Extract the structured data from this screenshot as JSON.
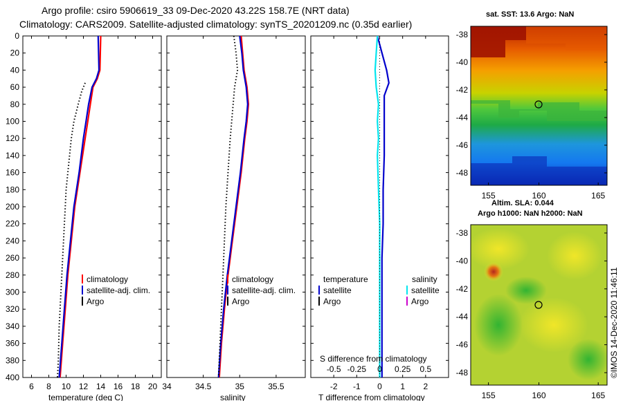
{
  "header": {
    "line1": "Argo profile: csiro 5906619_33 09-Dec-2020 43.22S 158.7E (NRT data)",
    "line2": "Climatology: CARS2009. Satellite-adjusted climatology: synTS_20201209.nc (0.35d earlier)"
  },
  "colors": {
    "climatology": "#ff0000",
    "satellite": "#0000cc",
    "argo": "#000000",
    "sat_salinity": "#00e5ee",
    "argo_salinity": "#cc00cc"
  },
  "chart_data": [
    {
      "type": "line",
      "id": "temperature",
      "xlabel": "temperature (deg C)",
      "ylabel": "",
      "xlim": [
        5,
        21
      ],
      "ylim": [
        400,
        0
      ],
      "xticks": [
        6,
        8,
        10,
        12,
        14,
        16,
        18,
        20
      ],
      "yticks": [
        0,
        20,
        40,
        60,
        80,
        100,
        120,
        140,
        160,
        180,
        200,
        220,
        240,
        260,
        280,
        300,
        320,
        340,
        360,
        380,
        400
      ],
      "legend": [
        "climatology",
        "satellite-adj. clim.",
        "Argo"
      ],
      "series": [
        {
          "name": "climatology",
          "color": "#ff0000",
          "depth": [
            0,
            20,
            40,
            50,
            60,
            80,
            100,
            120,
            160,
            200,
            240,
            280,
            320,
            360,
            400
          ],
          "values": [
            14.0,
            13.95,
            13.9,
            13.6,
            13.1,
            12.8,
            12.5,
            12.2,
            11.6,
            11.0,
            10.6,
            10.2,
            9.9,
            9.6,
            9.3
          ]
        },
        {
          "name": "satellite-adj. clim.",
          "color": "#0000cc",
          "depth": [
            0,
            20,
            40,
            50,
            60,
            80,
            100,
            120,
            160,
            200,
            240,
            280,
            320,
            360,
            400
          ],
          "values": [
            13.7,
            13.75,
            13.8,
            13.5,
            13.0,
            12.6,
            12.3,
            12.0,
            11.5,
            10.9,
            10.5,
            10.1,
            9.8,
            9.5,
            9.2
          ]
        },
        {
          "name": "Argo",
          "color": "#000000",
          "depth": [
            55,
            65,
            80,
            100,
            120,
            140,
            160,
            180,
            200,
            220,
            240,
            260,
            280,
            300,
            320,
            340,
            360,
            380,
            400
          ],
          "values": [
            12.2,
            11.8,
            11.4,
            10.9,
            10.6,
            10.4,
            10.2,
            10.0,
            9.9,
            9.8,
            9.7,
            9.6,
            9.5,
            9.4,
            9.3,
            9.2,
            9.15,
            9.1,
            9.0
          ]
        }
      ]
    },
    {
      "type": "line",
      "id": "salinity",
      "xlabel": "salinity",
      "ylabel": "",
      "xlim": [
        34,
        35.9
      ],
      "ylim": [
        400,
        0
      ],
      "xticks": [
        34,
        34.5,
        35,
        35.5
      ],
      "legend": [
        "climatology",
        "satellite-adj. clim.",
        "Argo"
      ],
      "series": [
        {
          "name": "climatology",
          "color": "#ff0000",
          "depth": [
            0,
            20,
            40,
            60,
            80,
            100,
            120,
            160,
            200,
            240,
            280,
            320,
            360,
            400
          ],
          "values": [
            35.02,
            35.04,
            35.06,
            35.1,
            35.12,
            35.1,
            35.07,
            35.02,
            34.96,
            34.9,
            34.84,
            34.79,
            34.75,
            34.72
          ]
        },
        {
          "name": "satellite-adj. clim.",
          "color": "#0000cc",
          "depth": [
            0,
            20,
            40,
            60,
            80,
            100,
            120,
            160,
            200,
            240,
            280,
            320,
            360,
            400
          ],
          "values": [
            35.0,
            35.03,
            35.05,
            35.09,
            35.11,
            35.09,
            35.06,
            35.01,
            34.95,
            34.89,
            34.83,
            34.78,
            34.74,
            34.71
          ]
        },
        {
          "name": "Argo",
          "color": "#000000",
          "depth": [
            0,
            20,
            40,
            60,
            80,
            100,
            120,
            160,
            200,
            240,
            280,
            320,
            360,
            400
          ],
          "values": [
            34.92,
            34.95,
            34.97,
            34.93,
            34.91,
            34.89,
            34.87,
            34.84,
            34.81,
            34.79,
            34.77,
            34.75,
            34.73,
            34.71
          ]
        }
      ]
    },
    {
      "type": "line",
      "id": "differences",
      "xlabel": "T difference from climatology",
      "xlabel_top": "S difference from climatology",
      "ylabel": "",
      "xlim": [
        -3,
        3
      ],
      "ylim": [
        400,
        0
      ],
      "xticks": [
        -2,
        -1,
        0,
        1,
        2
      ],
      "xtick_labels": [
        "-2",
        "-1",
        "0",
        "1",
        "2"
      ],
      "top_ticks": [
        "-0.5",
        "-0.25",
        "0",
        "0.25",
        "0.5"
      ],
      "legend": {
        "temperature_heading": "temperature",
        "salinity_heading": "salinity",
        "items": [
          "satellite",
          "Argo",
          "satellite",
          "Argo"
        ]
      },
      "series": [
        {
          "name": "T satellite",
          "color": "#0000cc",
          "depth": [
            0,
            20,
            40,
            55,
            70,
            100,
            140,
            180,
            220,
            260,
            300,
            360,
            400
          ],
          "values": [
            -0.1,
            0.1,
            0.3,
            0.4,
            0.2,
            0.2,
            0.2,
            0.15,
            0.15,
            0.1,
            0.1,
            0.1,
            0.1
          ]
        },
        {
          "name": "S satellite",
          "color": "#00e5ee",
          "depth": [
            0,
            20,
            40,
            60,
            80,
            100,
            120,
            140,
            180,
            220,
            260,
            300,
            360,
            400
          ],
          "values": [
            -0.1,
            -0.15,
            -0.2,
            -0.15,
            -0.05,
            -0.1,
            -0.05,
            -0.1,
            -0.05,
            0.0,
            0.0,
            0.0,
            0.0,
            0.0
          ]
        }
      ]
    },
    {
      "type": "heatmap",
      "id": "sst-map",
      "title": "sat. SST: 13.6 Argo: NaN",
      "xticks": [
        "155",
        "160",
        "165"
      ],
      "yticks": [
        "-38",
        "-40",
        "-42",
        "-44",
        "-46",
        "-48"
      ],
      "marker": {
        "lon": 158.7,
        "lat": -43.22
      }
    },
    {
      "type": "heatmap",
      "id": "sla-map",
      "title_line1": "Altim. SLA: 0.044",
      "title_line2": "Argo h1000: NaN h2000: NaN",
      "xticks": [
        "155",
        "160",
        "165"
      ],
      "yticks": [
        "-38",
        "-40",
        "-42",
        "-44",
        "-46",
        "-48"
      ],
      "marker": {
        "lon": 158.7,
        "lat": -43.22
      },
      "credit": "©IMOS 14-Dec-2020 11:46:11"
    }
  ]
}
